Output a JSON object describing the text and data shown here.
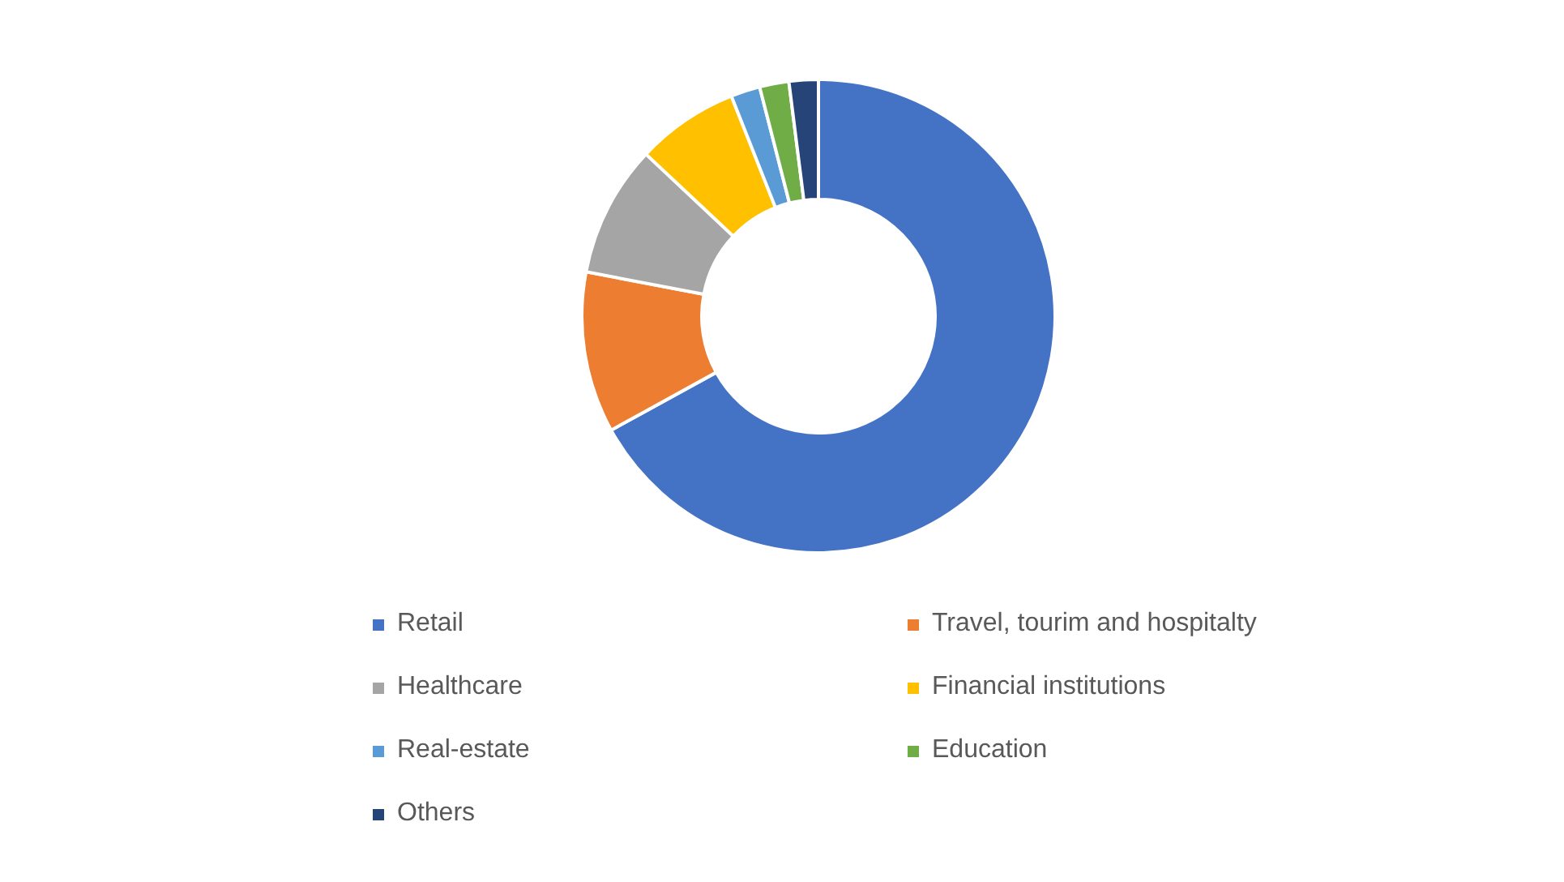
{
  "chart_data": {
    "type": "donut",
    "categories": [
      "Retail",
      "Travel, tourim and hospitalty",
      "Healthcare",
      "Financial institutions",
      "Real-estate",
      "Education",
      "Others"
    ],
    "values": [
      67,
      11,
      9,
      7,
      2,
      2,
      2
    ],
    "colors": [
      "#4472c4",
      "#ed7d31",
      "#a5a5a5",
      "#ffc000",
      "#5b9bd5",
      "#70ad47",
      "#264478"
    ],
    "legend": "bottom"
  }
}
